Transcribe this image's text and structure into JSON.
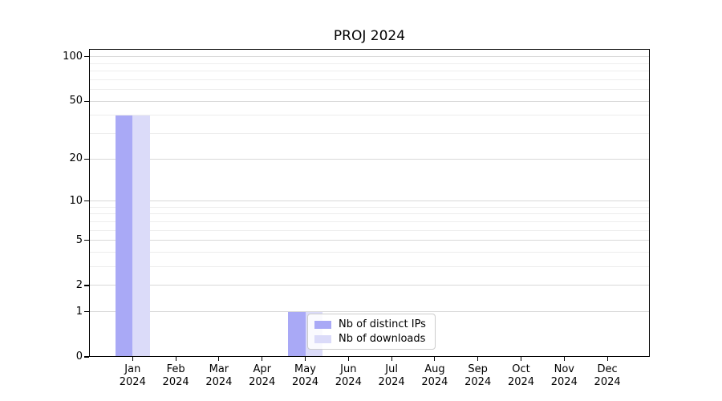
{
  "title": "PROJ 2024",
  "chart_data": {
    "type": "bar",
    "title": "PROJ 2024",
    "categories": [
      {
        "month": "Jan",
        "year": "2024"
      },
      {
        "month": "Feb",
        "year": "2024"
      },
      {
        "month": "Mar",
        "year": "2024"
      },
      {
        "month": "Apr",
        "year": "2024"
      },
      {
        "month": "May",
        "year": "2024"
      },
      {
        "month": "Jun",
        "year": "2024"
      },
      {
        "month": "Jul",
        "year": "2024"
      },
      {
        "month": "Aug",
        "year": "2024"
      },
      {
        "month": "Sep",
        "year": "2024"
      },
      {
        "month": "Oct",
        "year": "2024"
      },
      {
        "month": "Nov",
        "year": "2024"
      },
      {
        "month": "Dec",
        "year": "2024"
      }
    ],
    "series": [
      {
        "name": "Nb of distinct IPs",
        "color": "#a9a9f6",
        "values": [
          40,
          0,
          0,
          0,
          1,
          0,
          0,
          0,
          0,
          0,
          0,
          0
        ]
      },
      {
        "name": "Nb of downloads",
        "color": "#dbdbf9",
        "values": [
          40,
          0,
          0,
          0,
          1,
          0,
          0,
          0,
          0,
          0,
          0,
          0
        ]
      }
    ],
    "yscale": "log1p",
    "ylim": [
      0,
      113
    ],
    "ytick_values": [
      0,
      1,
      2,
      5,
      10,
      20,
      50,
      100
    ],
    "ytick_labels": [
      "0",
      "1",
      "2",
      "5",
      "10",
      "20",
      "50",
      "100"
    ],
    "minor_ytick_values": [
      3,
      4,
      6,
      7,
      8,
      9,
      30,
      40,
      60,
      70,
      80,
      90
    ],
    "grid": true,
    "legend_position": "lower-center-inside",
    "xlabel": "",
    "ylabel": ""
  },
  "colors": {
    "background": "#ffffff",
    "bar_distinct_ips": "#a9a9f6",
    "bar_downloads": "#dbdbf9",
    "major_grid": "#d9d9d9",
    "minor_grid": "#ededed",
    "axis": "#000000",
    "legend_border": "#cccccc"
  },
  "legend": {
    "items": [
      {
        "label": "Nb of distinct IPs",
        "color": "#a9a9f6"
      },
      {
        "label": "Nb of downloads",
        "color": "#dbdbf9"
      }
    ]
  }
}
